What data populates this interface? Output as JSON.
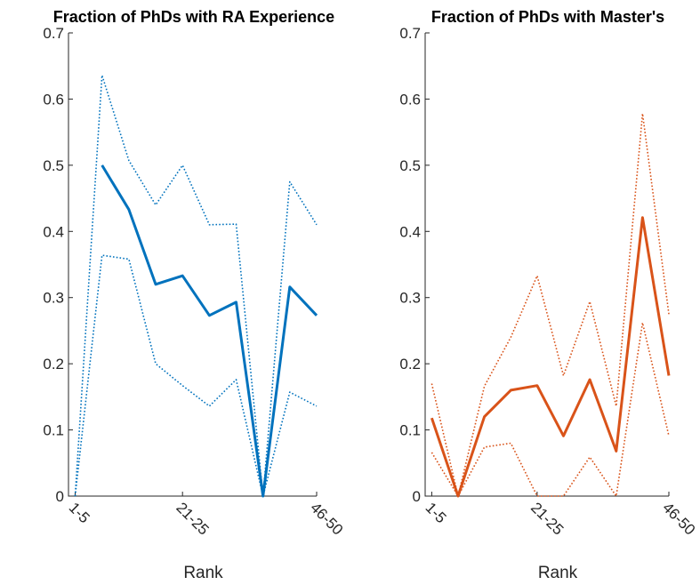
{
  "chart_data": [
    {
      "type": "line",
      "title": "Fraction of PhDs with RA Experience",
      "xlabel": "Rank",
      "ylabel": "",
      "ylim": [
        0,
        0.7
      ],
      "yticks": [
        "0",
        "0.1",
        "0.2",
        "0.3",
        "0.4",
        "0.5",
        "0.6",
        "0.7"
      ],
      "xticks": [
        "1-5",
        "21-25",
        "46-50"
      ],
      "color": "#0072bd",
      "x": [
        1,
        2,
        3,
        4,
        5,
        6,
        7,
        8,
        9,
        10
      ],
      "series": [
        {
          "style": "solid",
          "values": [
            null,
            0.5,
            0.433,
            0.32,
            0.333,
            0.273,
            0.293,
            0.0,
            0.316,
            0.273
          ]
        },
        {
          "style": "dotted",
          "values": [
            0.0,
            0.636,
            0.507,
            0.44,
            0.5,
            0.41,
            0.411,
            0.0,
            0.475,
            0.41
          ]
        },
        {
          "style": "dotted",
          "values": [
            0.0,
            0.364,
            0.358,
            0.2,
            0.167,
            0.136,
            0.176,
            0.0,
            0.157,
            0.136
          ]
        }
      ]
    },
    {
      "type": "line",
      "title": "Fraction of PhDs with Master's",
      "xlabel": "Rank",
      "ylabel": "",
      "ylim": [
        0,
        0.7
      ],
      "yticks": [
        "0",
        "0.1",
        "0.2",
        "0.3",
        "0.4",
        "0.5",
        "0.6",
        "0.7"
      ],
      "xticks": [
        "1-5",
        "21-25",
        "46-50"
      ],
      "color": "#d95319",
      "x": [
        1,
        2,
        3,
        4,
        5,
        6,
        7,
        8,
        9,
        10
      ],
      "series": [
        {
          "style": "solid",
          "values": [
            0.118,
            0.0,
            0.12,
            0.16,
            0.167,
            0.091,
            0.176,
            0.068,
            0.421,
            0.182
          ]
        },
        {
          "style": "dotted",
          "values": [
            0.17,
            0.0,
            0.166,
            0.24,
            0.333,
            0.182,
            0.294,
            0.136,
            0.578,
            0.275
          ]
        },
        {
          "style": "dotted",
          "values": [
            0.066,
            0.0,
            0.074,
            0.08,
            0.0,
            0.0,
            0.059,
            0.0,
            0.262,
            0.091
          ]
        }
      ]
    }
  ]
}
